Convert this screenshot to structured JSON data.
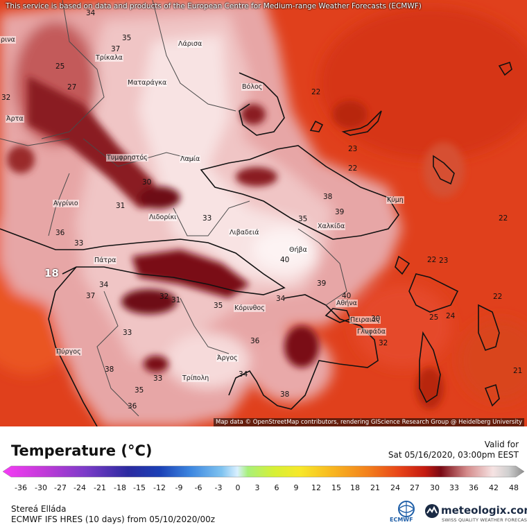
{
  "attribution_top": "This service is based on data and products of the European Centre for Medium-range Weather Forecasts (ECMWF)",
  "attribution_bottom": "Map data © OpenStreetMap contributors, rendering GIScience Research Group @ Heidelberg University",
  "legend": {
    "title": "Temperature (°C)",
    "valid_label": "Valid for",
    "valid_time": "Sat 05/16/2020, 03:00pm EEST",
    "ticks": [
      "-36",
      "-30",
      "-27",
      "-24",
      "-21",
      "-18",
      "-15",
      "-12",
      "-9",
      "-6",
      "-3",
      "0",
      "3",
      "6",
      "9",
      "12",
      "15",
      "18",
      "21",
      "24",
      "27",
      "30",
      "33",
      "36",
      "42",
      "48"
    ]
  },
  "footer": {
    "region": "Stereá Elláda",
    "model": "ECMWF IFS HRES (10 days) from 05/10/2020/00z",
    "ecmwf_label": "ECMWF",
    "brand": "meteologix.com",
    "brand_tagline": "SWISS QUALITY WEATHER FORECASTING"
  },
  "cities": [
    {
      "name": "Τρίκαλα"
    },
    {
      "name": "Λάρισα"
    },
    {
      "name": "Ματαράγκα"
    },
    {
      "name": "Βόλος"
    },
    {
      "name": "Άρτα"
    },
    {
      "name": "Τυμφρηστός"
    },
    {
      "name": "Λαμία"
    },
    {
      "name": "Αγρίνιο"
    },
    {
      "name": "Λιδορίκι"
    },
    {
      "name": "Λιβαδειά"
    },
    {
      "name": "Χαλκίδα"
    },
    {
      "name": "Κύμη"
    },
    {
      "name": "Θήβα"
    },
    {
      "name": "Πάτρα"
    },
    {
      "name": "Κόρινθος"
    },
    {
      "name": "Αθήνα"
    },
    {
      "name": "Πειραιάς"
    },
    {
      "name": "Γλυφάδα"
    },
    {
      "name": "Πύργος"
    },
    {
      "name": "Άργος"
    },
    {
      "name": "Τρίπολη"
    },
    {
      "name": "ρινα"
    }
  ],
  "isolines": [
    {
      "v": "34"
    },
    {
      "v": "35"
    },
    {
      "v": "37"
    },
    {
      "v": "25"
    },
    {
      "v": "27"
    },
    {
      "v": "32"
    },
    {
      "v": "22"
    },
    {
      "v": "23"
    },
    {
      "v": "22"
    },
    {
      "v": "30"
    },
    {
      "v": "31"
    },
    {
      "v": "33"
    },
    {
      "v": "38"
    },
    {
      "v": "39"
    },
    {
      "v": "22"
    },
    {
      "v": "35"
    },
    {
      "v": "36"
    },
    {
      "v": "33"
    },
    {
      "v": "40"
    },
    {
      "v": "18"
    },
    {
      "v": "34"
    },
    {
      "v": "37"
    },
    {
      "v": "32"
    },
    {
      "v": "31"
    },
    {
      "v": "35"
    },
    {
      "v": "34"
    },
    {
      "v": "39"
    },
    {
      "v": "40"
    },
    {
      "v": "22"
    },
    {
      "v": "23"
    },
    {
      "v": "33"
    },
    {
      "v": "36"
    },
    {
      "v": "38"
    },
    {
      "v": "33"
    },
    {
      "v": "35"
    },
    {
      "v": "36"
    },
    {
      "v": "34"
    },
    {
      "v": "38"
    },
    {
      "v": "32"
    },
    {
      "v": "30"
    },
    {
      "v": "25"
    },
    {
      "v": "24"
    },
    {
      "v": "22"
    },
    {
      "v": "21"
    }
  ],
  "colors": {
    "sea_warm": "#e0401c",
    "sea_dark": "#c42a10",
    "land_hot": "#f1c9c9",
    "land_very_hot": "#f9eaea",
    "ridge": "#7a0a14"
  }
}
